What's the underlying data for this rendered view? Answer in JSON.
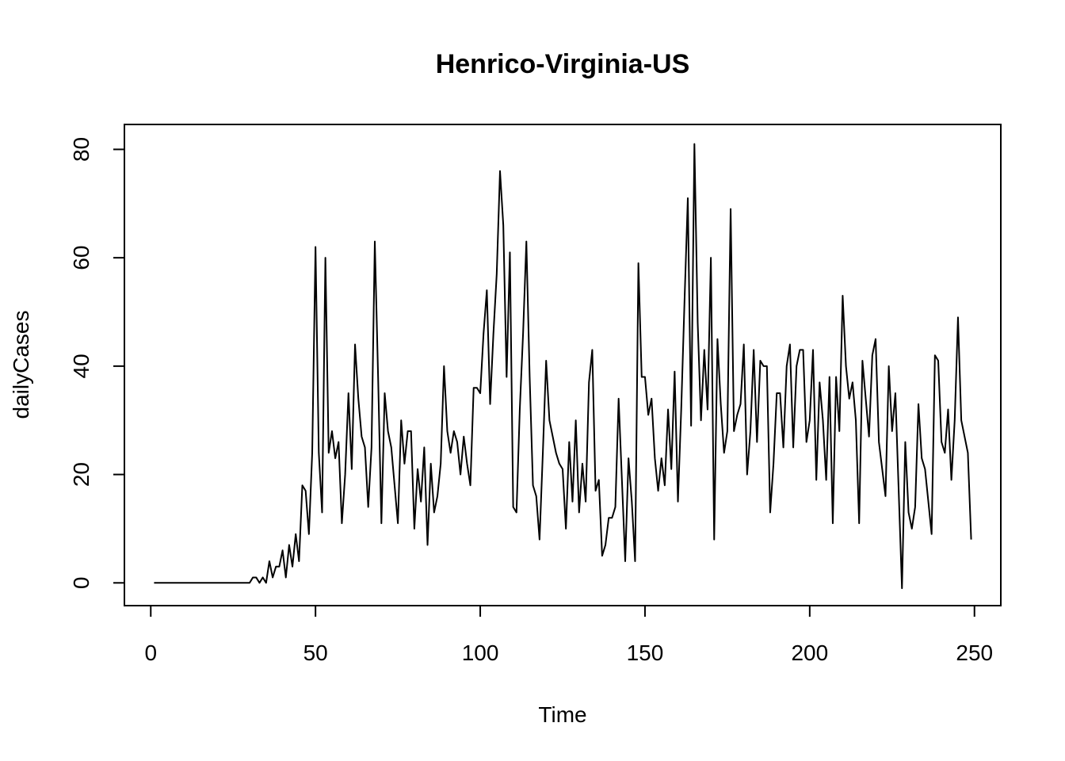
{
  "chart_data": {
    "type": "line",
    "title": "Henrico-Virginia-US",
    "xlabel": "Time",
    "ylabel": "dailyCases",
    "xlim": [
      -8,
      258
    ],
    "ylim": [
      -4.2,
      84.6
    ],
    "xticks": [
      "0",
      "50",
      "100",
      "150",
      "200",
      "250"
    ],
    "yticks": [
      "0",
      "20",
      "40",
      "60",
      "80"
    ],
    "grid": false,
    "legend": "none",
    "color": "#000000",
    "x_start": 1,
    "series": [
      {
        "values": [
          0,
          0,
          0,
          0,
          0,
          0,
          0,
          0,
          0,
          0,
          0,
          0,
          0,
          0,
          0,
          0,
          0,
          0,
          0,
          0,
          0,
          0,
          0,
          0,
          0,
          0,
          0,
          0,
          0,
          0,
          1,
          1,
          0,
          1,
          0,
          4,
          1,
          3,
          3,
          6,
          1,
          7,
          3,
          9,
          4,
          18,
          17,
          9,
          24,
          62,
          24,
          13,
          60,
          24,
          28,
          23,
          26,
          11,
          20,
          35,
          21,
          44,
          34,
          27,
          25,
          14,
          25,
          63,
          38,
          11,
          35,
          28,
          25,
          18,
          11,
          30,
          22,
          28,
          28,
          10,
          21,
          15,
          25,
          7,
          22,
          13,
          16,
          22,
          40,
          28,
          24,
          28,
          26,
          20,
          27,
          22,
          18,
          36,
          36,
          35,
          46,
          54,
          33,
          46,
          57,
          76,
          66,
          38,
          61,
          14,
          13,
          32,
          46,
          63,
          38,
          18,
          16,
          8,
          24,
          41,
          30,
          27,
          24,
          22,
          21,
          10,
          26,
          15,
          30,
          13,
          22,
          15,
          37,
          43,
          17,
          19,
          5,
          7,
          12,
          12,
          14,
          34,
          19,
          4,
          23,
          15,
          4,
          59,
          38,
          38,
          31,
          34,
          23,
          17,
          23,
          18,
          32,
          21,
          39,
          15,
          32,
          52,
          71,
          29,
          81,
          48,
          30,
          43,
          32,
          60,
          8,
          45,
          33,
          24,
          28,
          69,
          28,
          31,
          33,
          44,
          20,
          28,
          43,
          26,
          41,
          40,
          40,
          13,
          22,
          35,
          35,
          25,
          40,
          44,
          25,
          40,
          43,
          43,
          26,
          30,
          43,
          19,
          37,
          30,
          19,
          38,
          11,
          38,
          28,
          53,
          40,
          34,
          37,
          30,
          11,
          41,
          34,
          27,
          42,
          45,
          26,
          21,
          16,
          40,
          28,
          35,
          17,
          -1,
          26,
          13,
          10,
          14,
          33,
          23,
          21,
          15,
          9,
          42,
          41,
          26,
          24,
          32,
          19,
          30,
          49,
          30,
          27,
          24,
          8
        ]
      }
    ]
  }
}
